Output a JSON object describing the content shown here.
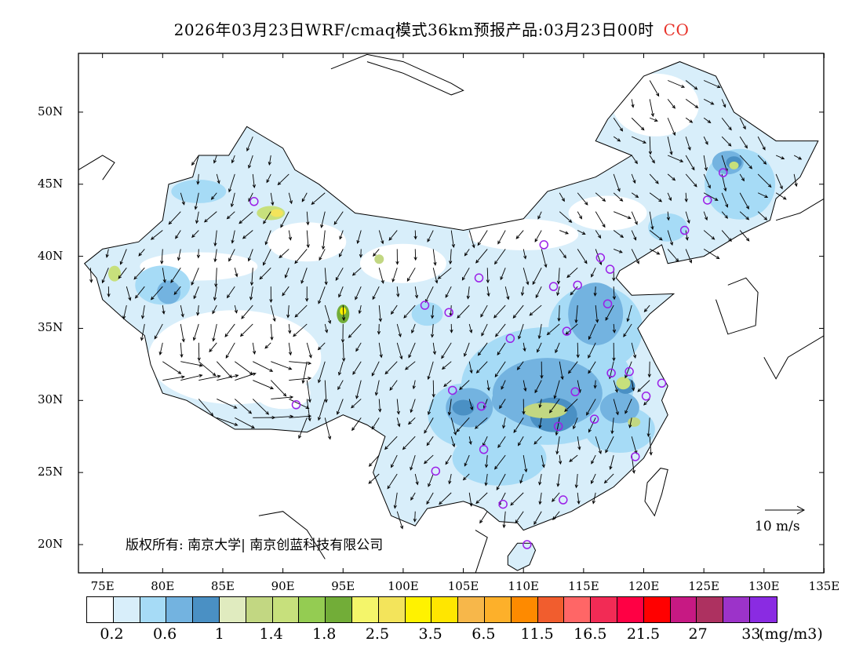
{
  "title": {
    "text": "2026年03月23日WRF/cmaq模式36km预报产品:03月23日00时",
    "species": "CO",
    "species_color": "#e8332a"
  },
  "axes": {
    "lat_labels": [
      "50N",
      "45N",
      "40N",
      "35N",
      "30N",
      "25N",
      "20N"
    ],
    "lat_values": [
      50,
      45,
      40,
      35,
      30,
      25,
      20
    ],
    "lon_labels": [
      "75E",
      "80E",
      "85E",
      "90E",
      "95E",
      "100E",
      "105E",
      "110E",
      "115E",
      "120E",
      "125E",
      "130E",
      "135E"
    ],
    "lon_values": [
      75,
      80,
      85,
      90,
      95,
      100,
      105,
      110,
      115,
      120,
      125,
      130,
      135
    ]
  },
  "colorbar": {
    "colors": [
      "#ffffff",
      "#d8eefa",
      "#a6dbf6",
      "#73b3e0",
      "#4a90c4",
      "#e0ebbf",
      "#c2d782",
      "#c7e07c",
      "#94cc52",
      "#72ad38",
      "#f4f56a",
      "#f3e45b",
      "#fff200",
      "#ffe600",
      "#f7b74a",
      "#fdb02a",
      "#fe8a00",
      "#f15d2e",
      "#ff6666",
      "#f22b55",
      "#ff0044",
      "#ff0000",
      "#c71983",
      "#ad3160",
      "#9c33c9",
      "#8a2be2"
    ],
    "labels": [
      "0.2",
      "0.6",
      "1",
      "1.4",
      "1.8",
      "2.5",
      "3.5",
      "6.5",
      "11.5",
      "16.5",
      "21.5",
      "27",
      "33"
    ],
    "units": "(mg/m3)"
  },
  "credit": "版权所有: 南京大学| 南京创蓝科技有限公司",
  "reference_vector": "10 m/s"
}
